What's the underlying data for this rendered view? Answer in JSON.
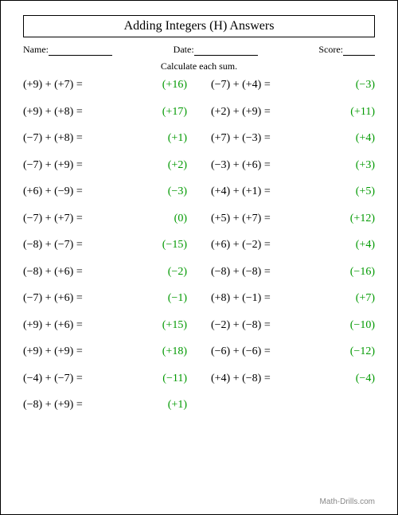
{
  "title": "Adding Integers (H) Answers",
  "header": {
    "name_label": "Name:",
    "date_label": "Date:",
    "score_label": "Score:"
  },
  "instructions": "Calculate each sum.",
  "answer_color": "#009900",
  "text_color": "#000000",
  "columns": {
    "left": [
      {
        "a": "(+9)",
        "b": "(+7)",
        "ans": "(+16)"
      },
      {
        "a": "(+9)",
        "b": "(+8)",
        "ans": "(+17)"
      },
      {
        "a": "(−7)",
        "b": "(+8)",
        "ans": "(+1)"
      },
      {
        "a": "(−7)",
        "b": "(+9)",
        "ans": "(+2)"
      },
      {
        "a": "(+6)",
        "b": "(−9)",
        "ans": "(−3)"
      },
      {
        "a": "(−7)",
        "b": "(+7)",
        "ans": "(0)"
      },
      {
        "a": "(−8)",
        "b": "(−7)",
        "ans": "(−15)"
      },
      {
        "a": "(−8)",
        "b": "(+6)",
        "ans": "(−2)"
      },
      {
        "a": "(−7)",
        "b": "(+6)",
        "ans": "(−1)"
      },
      {
        "a": "(+9)",
        "b": "(+6)",
        "ans": "(+15)"
      },
      {
        "a": "(+9)",
        "b": "(+9)",
        "ans": "(+18)"
      },
      {
        "a": "(−4)",
        "b": "(−7)",
        "ans": "(−11)"
      },
      {
        "a": "(−8)",
        "b": "(+9)",
        "ans": "(+1)"
      }
    ],
    "right": [
      {
        "a": "(−7)",
        "b": "(+4)",
        "ans": "(−3)"
      },
      {
        "a": "(+2)",
        "b": "(+9)",
        "ans": "(+11)"
      },
      {
        "a": "(+7)",
        "b": "(−3)",
        "ans": "(+4)"
      },
      {
        "a": "(−3)",
        "b": "(+6)",
        "ans": "(+3)"
      },
      {
        "a": "(+4)",
        "b": "(+1)",
        "ans": "(+5)"
      },
      {
        "a": "(+5)",
        "b": "(+7)",
        "ans": "(+12)"
      },
      {
        "a": "(+6)",
        "b": "(−2)",
        "ans": "(+4)"
      },
      {
        "a": "(−8)",
        "b": "(−8)",
        "ans": "(−16)"
      },
      {
        "a": "(+8)",
        "b": "(−1)",
        "ans": "(+7)"
      },
      {
        "a": "(−2)",
        "b": "(−8)",
        "ans": "(−10)"
      },
      {
        "a": "(−6)",
        "b": "(−6)",
        "ans": "(−12)"
      },
      {
        "a": "(+4)",
        "b": "(−8)",
        "ans": "(−4)"
      }
    ]
  },
  "footer": "Math-Drills.com"
}
